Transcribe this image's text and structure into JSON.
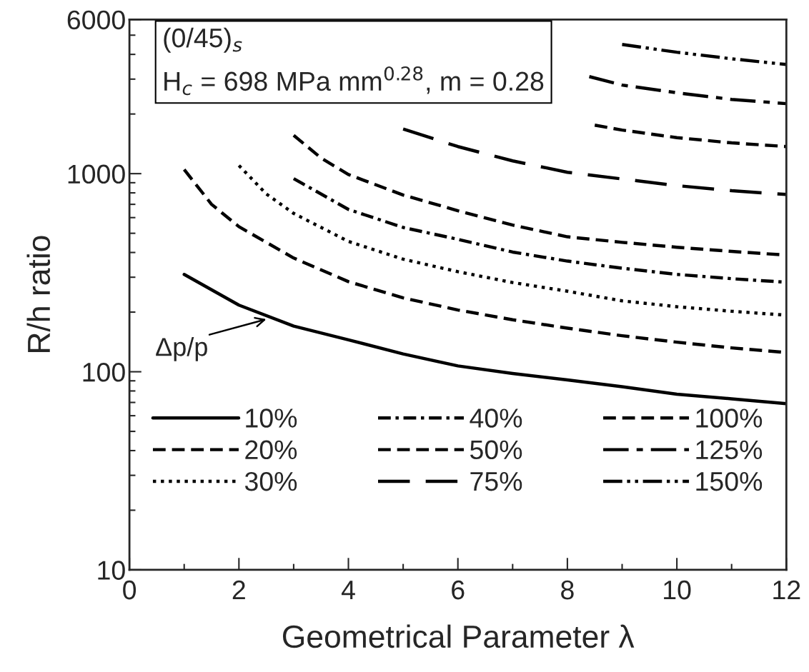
{
  "chart_data": {
    "type": "line",
    "xlabel": "Geometrical Parameter λ",
    "ylabel": "R/h ratio",
    "log": "y",
    "xlim": [
      0,
      12
    ],
    "ylim": [
      10,
      6000
    ],
    "xticks": [
      0,
      {
        "value": 1,
        "label": null
      },
      2,
      {
        "value": 3,
        "label": null
      },
      4,
      {
        "value": 5,
        "label": null
      },
      6,
      {
        "value": 7,
        "label": null
      },
      8,
      {
        "value": 9,
        "label": null
      },
      10,
      {
        "value": 11,
        "label": null
      },
      12
    ],
    "yticks": [
      10,
      100,
      1000,
      6000
    ],
    "grid": false,
    "legend": "bottom",
    "marker": "none",
    "annotations": [
      "(0/45)$_{s}$",
      "H$_{c}$ = 698 MPa mm$^{0.28}$, m = 0.28",
      {
        "text": "Δp/p",
        "x": 2.5,
        "y": 184
      }
    ],
    "series": [
      {
        "name": "10%",
        "color": "#000000",
        "line_style": "solid",
        "x": [
          1,
          2,
          3,
          4,
          5,
          6,
          7,
          8,
          9,
          10,
          11,
          12
        ],
        "values": [
          310,
          217,
          170,
          145,
          123,
          107,
          98,
          91,
          84,
          77,
          73,
          69
        ]
      },
      {
        "name": "20%",
        "color": "#000000",
        "line_style": "dashed",
        "x": [
          1,
          1.5,
          2,
          3,
          4,
          5,
          6,
          7,
          8,
          9,
          10,
          11,
          12
        ],
        "values": [
          1050,
          700,
          540,
          375,
          285,
          236,
          205,
          183,
          166,
          152,
          141,
          132,
          125
        ]
      },
      {
        "name": "30%",
        "color": "#000000",
        "line_style": "dotted",
        "x": [
          2,
          2.5,
          3,
          4,
          5,
          6,
          7,
          8,
          9,
          10,
          11,
          12
        ],
        "values": [
          1100,
          790,
          630,
          455,
          370,
          320,
          282,
          255,
          228,
          213,
          202,
          193
        ]
      },
      {
        "name": "40%",
        "color": "#000000",
        "line_style": "dashdot",
        "x": [
          3,
          4,
          5,
          6,
          7,
          8,
          9,
          10,
          11,
          12
        ],
        "values": [
          944,
          660,
          535,
          466,
          402,
          362,
          333,
          310,
          295,
          283
        ]
      },
      {
        "name": "50%",
        "color": "#000000",
        "line_style": "dashed",
        "x": [
          3,
          3.5,
          4,
          5,
          6,
          7,
          8,
          9,
          10,
          11,
          12
        ],
        "values": [
          1560,
          1200,
          990,
          780,
          650,
          550,
          480,
          450,
          425,
          405,
          388
        ]
      },
      {
        "name": "75%",
        "color": "#000000",
        "line_style": "longdash",
        "x": [
          5,
          6,
          7,
          8,
          9,
          10,
          11,
          12
        ],
        "values": [
          1680,
          1370,
          1160,
          1016,
          940,
          870,
          820,
          785
        ]
      },
      {
        "name": "100%",
        "color": "#000000",
        "line_style": "dashed",
        "x": [
          8.5,
          9,
          10,
          11,
          12
        ],
        "values": [
          1757,
          1660,
          1520,
          1430,
          1370
        ]
      },
      {
        "name": "125%",
        "color": "#000000",
        "line_style": "longshort",
        "x": [
          8.4,
          9,
          10,
          11,
          12
        ],
        "values": [
          3090,
          2800,
          2560,
          2370,
          2256
        ]
      },
      {
        "name": "150%",
        "color": "#000000",
        "line_style": "dashdotdot",
        "x": [
          9,
          10,
          11,
          12
        ],
        "values": [
          4490,
          4100,
          3800,
          3556
        ]
      }
    ]
  }
}
